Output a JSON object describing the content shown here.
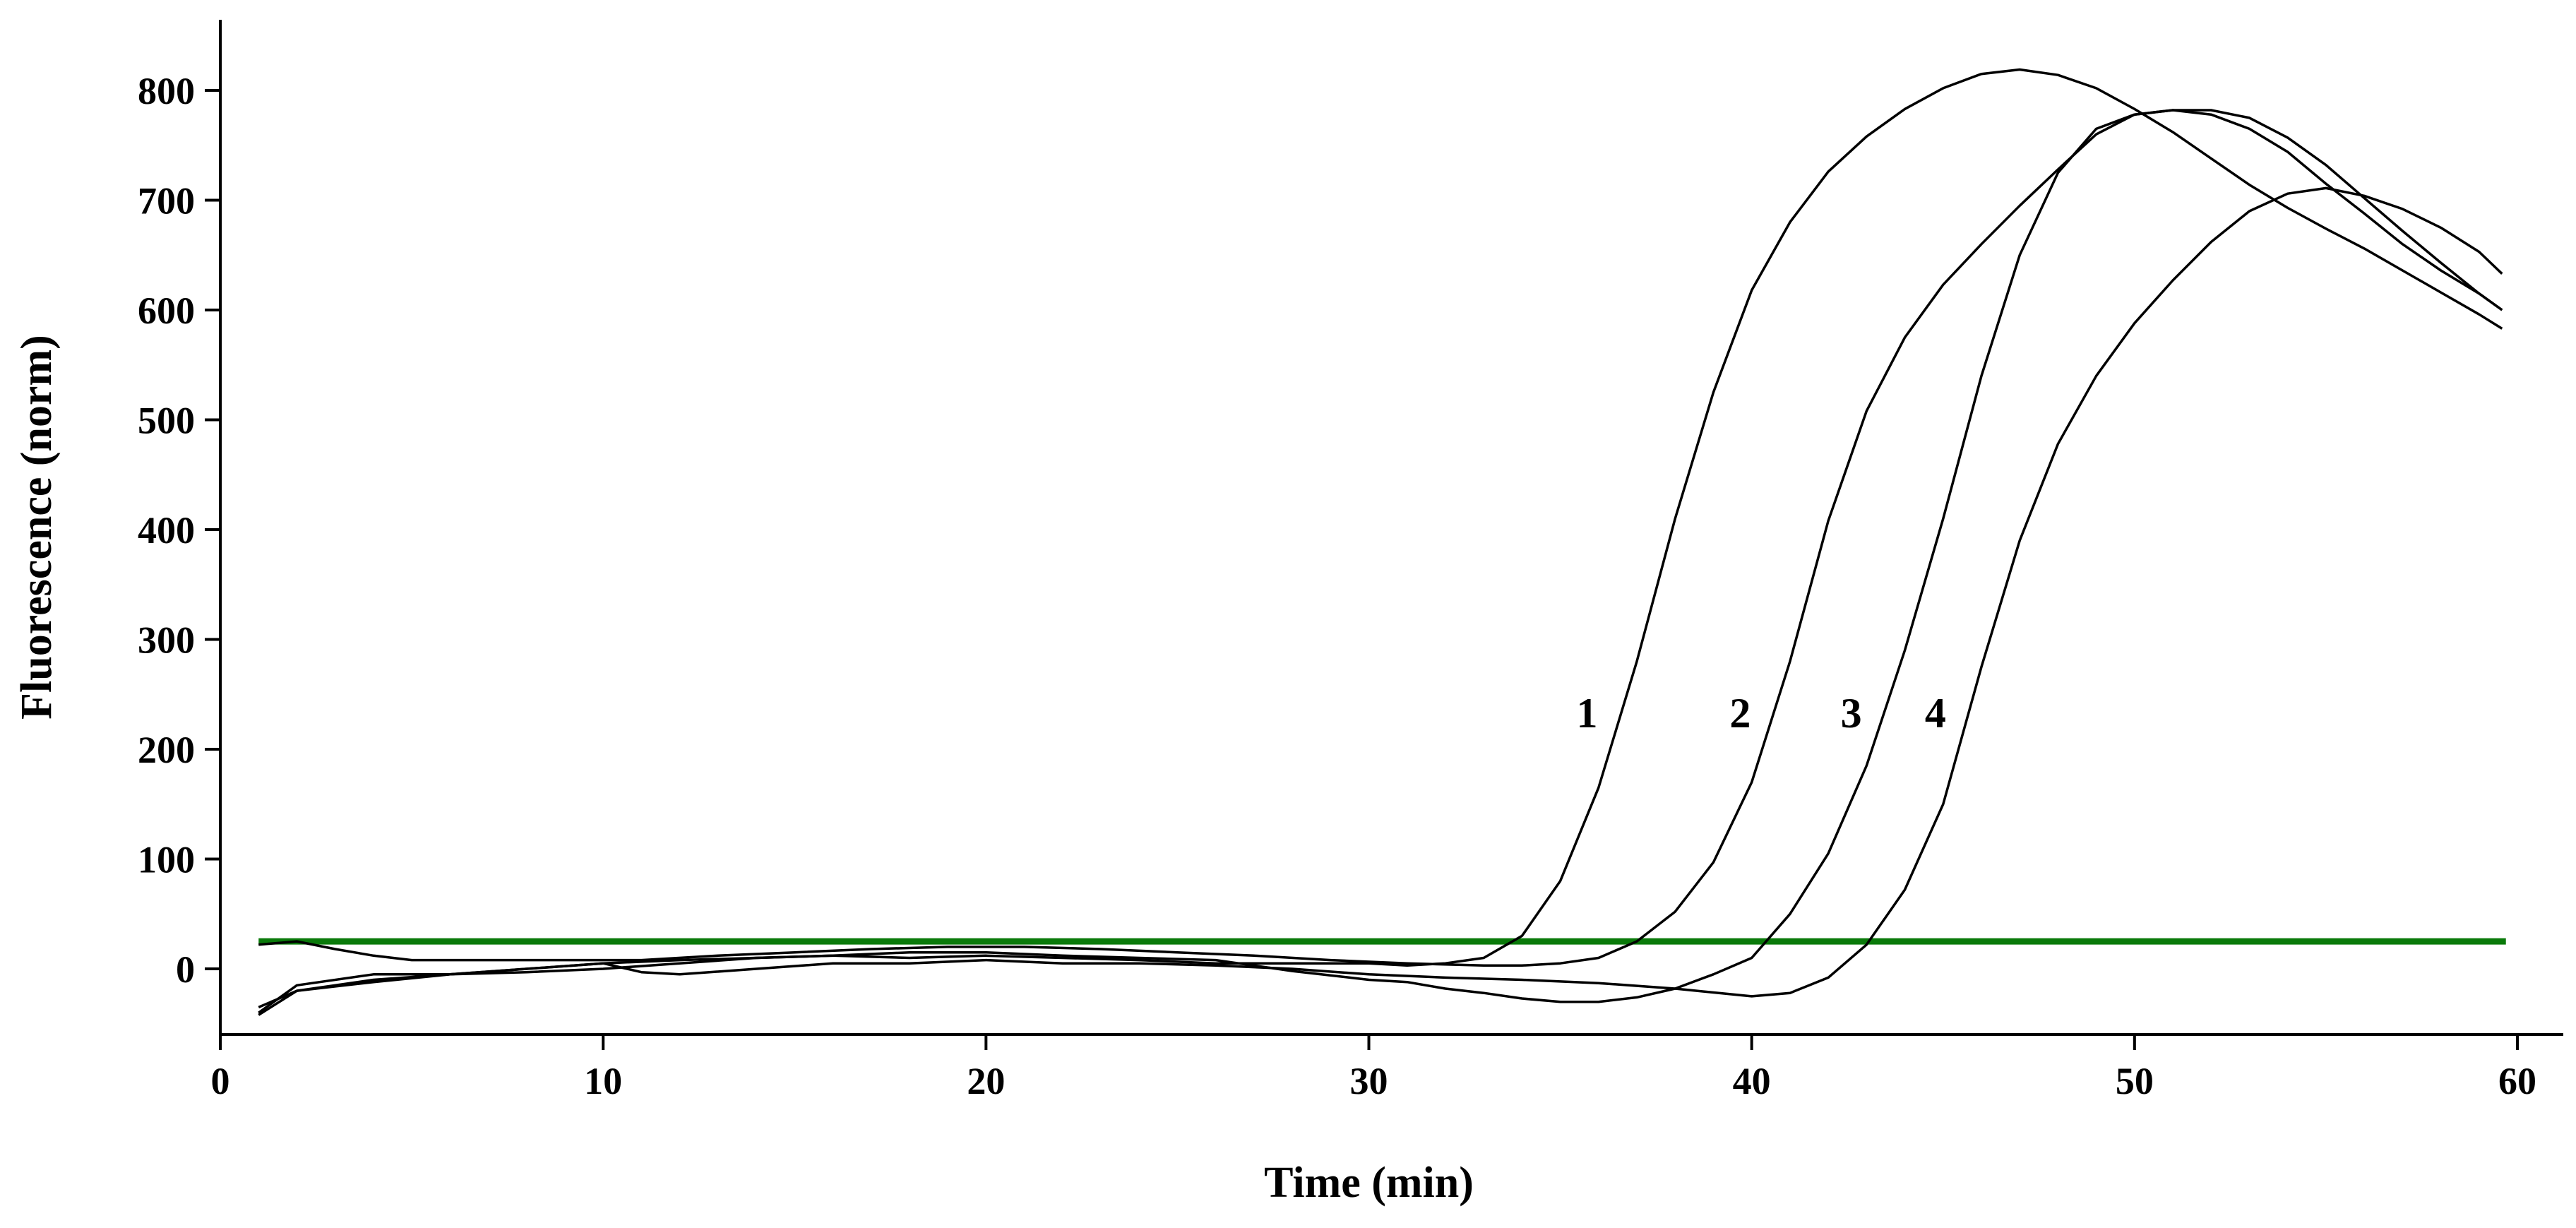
{
  "chart_data": {
    "type": "line",
    "xlabel": "Time (min)",
    "ylabel": "Fluorescence (norm)",
    "xlim": [
      0,
      60
    ],
    "ylim": [
      -60,
      870
    ],
    "x_ticks": [
      0,
      10,
      20,
      30,
      40,
      50,
      60
    ],
    "y_ticks": [
      0,
      100,
      200,
      300,
      400,
      500,
      600,
      700,
      800
    ],
    "grid": false,
    "threshold": {
      "y": 25,
      "color": "#0a7a0a"
    },
    "series": [
      {
        "name": "1",
        "label_pos": [
          35.7,
          220
        ],
        "points": [
          [
            1,
            -40
          ],
          [
            2,
            -15
          ],
          [
            4,
            -5
          ],
          [
            6,
            -5
          ],
          [
            8,
            0
          ],
          [
            10,
            5
          ],
          [
            12,
            8
          ],
          [
            14,
            10
          ],
          [
            16,
            12
          ],
          [
            18,
            10
          ],
          [
            20,
            12
          ],
          [
            22,
            10
          ],
          [
            24,
            8
          ],
          [
            26,
            5
          ],
          [
            28,
            5
          ],
          [
            30,
            5
          ],
          [
            31,
            3
          ],
          [
            32,
            5
          ],
          [
            33,
            10
          ],
          [
            34,
            30
          ],
          [
            35,
            80
          ],
          [
            36,
            165
          ],
          [
            37,
            280
          ],
          [
            38,
            410
          ],
          [
            39,
            525
          ],
          [
            40,
            618
          ],
          [
            41,
            680
          ],
          [
            42,
            726
          ],
          [
            43,
            758
          ],
          [
            44,
            783
          ],
          [
            45,
            802
          ],
          [
            46,
            815
          ],
          [
            47,
            819
          ],
          [
            48,
            814
          ],
          [
            49,
            802
          ],
          [
            50,
            783
          ],
          [
            51,
            762
          ],
          [
            52,
            738
          ],
          [
            53,
            714
          ],
          [
            54,
            693
          ],
          [
            55,
            674
          ],
          [
            56,
            656
          ],
          [
            57,
            636
          ],
          [
            58,
            616
          ],
          [
            59,
            596
          ],
          [
            59.6,
            583
          ]
        ]
      },
      {
        "name": "2",
        "label_pos": [
          39.7,
          220
        ],
        "points": [
          [
            1,
            22
          ],
          [
            2,
            25
          ],
          [
            3,
            18
          ],
          [
            4,
            12
          ],
          [
            5,
            8
          ],
          [
            7,
            8
          ],
          [
            9,
            8
          ],
          [
            11,
            8
          ],
          [
            13,
            12
          ],
          [
            15,
            15
          ],
          [
            17,
            18
          ],
          [
            19,
            20
          ],
          [
            21,
            20
          ],
          [
            23,
            18
          ],
          [
            25,
            15
          ],
          [
            27,
            12
          ],
          [
            29,
            8
          ],
          [
            31,
            5
          ],
          [
            33,
            3
          ],
          [
            34,
            3
          ],
          [
            35,
            5
          ],
          [
            36,
            10
          ],
          [
            37,
            25
          ],
          [
            38,
            52
          ],
          [
            39,
            97
          ],
          [
            40,
            170
          ],
          [
            41,
            280
          ],
          [
            42,
            408
          ],
          [
            43,
            508
          ],
          [
            44,
            575
          ],
          [
            45,
            623
          ],
          [
            46,
            660
          ],
          [
            47,
            695
          ],
          [
            48,
            728
          ],
          [
            49,
            760
          ],
          [
            50,
            778
          ],
          [
            51,
            782
          ],
          [
            52,
            778
          ],
          [
            53,
            765
          ],
          [
            54,
            744
          ],
          [
            55,
            715
          ],
          [
            56,
            688
          ],
          [
            57,
            660
          ],
          [
            58,
            636
          ],
          [
            59,
            615
          ],
          [
            59.6,
            600
          ]
        ]
      },
      {
        "name": "3",
        "label_pos": [
          42.6,
          220
        ],
        "points": [
          [
            1,
            -35
          ],
          [
            2,
            -20
          ],
          [
            4,
            -10
          ],
          [
            6,
            -5
          ],
          [
            8,
            -3
          ],
          [
            10,
            0
          ],
          [
            12,
            5
          ],
          [
            14,
            10
          ],
          [
            16,
            12
          ],
          [
            18,
            15
          ],
          [
            20,
            15
          ],
          [
            22,
            12
          ],
          [
            24,
            10
          ],
          [
            26,
            8
          ],
          [
            28,
            -2
          ],
          [
            30,
            -10
          ],
          [
            31,
            -12
          ],
          [
            32,
            -18
          ],
          [
            33,
            -22
          ],
          [
            34,
            -27
          ],
          [
            35,
            -30
          ],
          [
            36,
            -30
          ],
          [
            37,
            -26
          ],
          [
            38,
            -18
          ],
          [
            39,
            -5
          ],
          [
            40,
            10
          ],
          [
            41,
            50
          ],
          [
            42,
            105
          ],
          [
            43,
            185
          ],
          [
            44,
            290
          ],
          [
            45,
            410
          ],
          [
            46,
            540
          ],
          [
            47,
            650
          ],
          [
            48,
            725
          ],
          [
            49,
            765
          ],
          [
            50,
            778
          ],
          [
            51,
            782
          ],
          [
            52,
            782
          ],
          [
            53,
            775
          ],
          [
            54,
            757
          ],
          [
            55,
            732
          ],
          [
            56,
            702
          ],
          [
            57,
            672
          ],
          [
            58,
            643
          ],
          [
            59,
            615
          ],
          [
            59.6,
            600
          ]
        ]
      },
      {
        "name": "4",
        "label_pos": [
          44.8,
          220
        ],
        "points": [
          [
            1,
            -42
          ],
          [
            2,
            -20
          ],
          [
            4,
            -12
          ],
          [
            6,
            -5
          ],
          [
            8,
            0
          ],
          [
            10,
            5
          ],
          [
            11,
            -3
          ],
          [
            12,
            -5
          ],
          [
            14,
            0
          ],
          [
            16,
            5
          ],
          [
            18,
            5
          ],
          [
            20,
            8
          ],
          [
            22,
            5
          ],
          [
            24,
            5
          ],
          [
            26,
            3
          ],
          [
            28,
            0
          ],
          [
            30,
            -5
          ],
          [
            32,
            -8
          ],
          [
            34,
            -10
          ],
          [
            36,
            -13
          ],
          [
            38,
            -18
          ],
          [
            40,
            -25
          ],
          [
            41,
            -22
          ],
          [
            42,
            -8
          ],
          [
            43,
            22
          ],
          [
            44,
            72
          ],
          [
            45,
            150
          ],
          [
            46,
            275
          ],
          [
            47,
            390
          ],
          [
            48,
            478
          ],
          [
            49,
            540
          ],
          [
            50,
            588
          ],
          [
            51,
            627
          ],
          [
            52,
            662
          ],
          [
            53,
            690
          ],
          [
            54,
            706
          ],
          [
            55,
            711
          ],
          [
            56,
            704
          ],
          [
            57,
            692
          ],
          [
            58,
            675
          ],
          [
            59,
            653
          ],
          [
            59.6,
            633
          ]
        ]
      }
    ]
  }
}
